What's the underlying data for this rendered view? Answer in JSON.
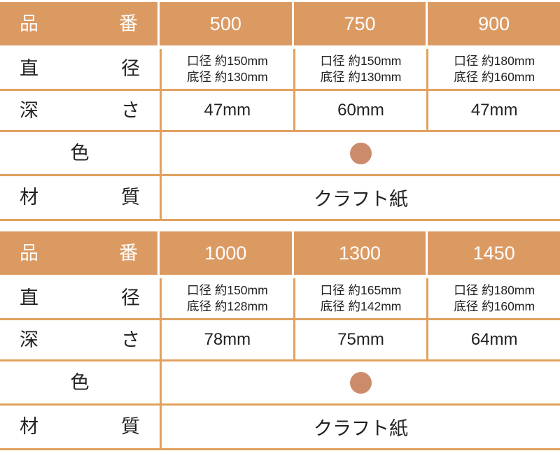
{
  "colors": {
    "accent": "#DC9A63",
    "border": "#E0A15E",
    "dot": "#CC8B6B",
    "header_text": "#FFFFFF",
    "body_text": "#222222"
  },
  "tables": [
    {
      "header": {
        "label": "品番",
        "columns": [
          "500",
          "750",
          "900"
        ]
      },
      "rows": [
        {
          "label": "直径",
          "cells": [
            [
              "口径 約150mm",
              "底径 約130mm"
            ],
            [
              "口径 約150mm",
              "底径 約130mm"
            ],
            [
              "口径 約180mm",
              "底径 約160mm"
            ]
          ]
        },
        {
          "label": "深さ",
          "cells": [
            "47mm",
            "60mm",
            "47mm"
          ]
        },
        {
          "label": "色"
        },
        {
          "label": "材質",
          "value": "クラフト紙"
        }
      ]
    },
    {
      "header": {
        "label": "品番",
        "columns": [
          "1000",
          "1300",
          "1450"
        ]
      },
      "rows": [
        {
          "label": "直径",
          "cells": [
            [
              "口径 約150mm",
              "底径 約128mm"
            ],
            [
              "口径 約165mm",
              "底径 約142mm"
            ],
            [
              "口径 約180mm",
              "底径 約160mm"
            ]
          ]
        },
        {
          "label": "深さ",
          "cells": [
            "78mm",
            "75mm",
            "64mm"
          ]
        },
        {
          "label": "色"
        },
        {
          "label": "材質",
          "value": "クラフト紙"
        }
      ]
    }
  ]
}
